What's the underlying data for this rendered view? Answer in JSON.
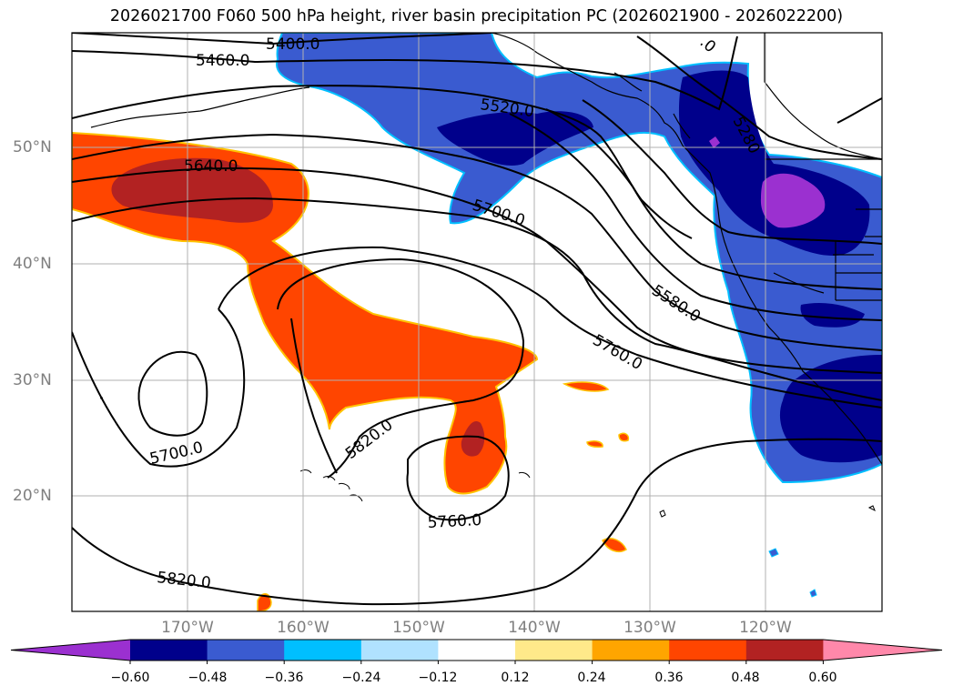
{
  "title": "2026021700 F060 500 hPa height, river basin precipitation PC (2026021900 - 2026022200)",
  "lat_labels": [
    "50°N",
    "40°N",
    "30°N",
    "20°N"
  ],
  "lon_labels": [
    "170°W",
    "160°W",
    "150°W",
    "140°W",
    "130°W",
    "120°W"
  ],
  "contour_labels": [
    "5400.0",
    "5460.0",
    "5520.0",
    "5640.0",
    "5700.0",
    "5580.0",
    "5760.0",
    "5820.0",
    "5700.0",
    "5760.0",
    "5820.0",
    "5280",
    ".0"
  ],
  "colorbar": {
    "ticks": [
      "−0.60",
      "−0.48",
      "−0.36",
      "−0.24",
      "−0.12",
      "0.12",
      "0.24",
      "0.36",
      "0.48",
      "0.60"
    ],
    "colors": [
      "#9b30d0",
      "#00008b",
      "#3a5bd0",
      "#00bfff",
      "#b0e2ff",
      "#ffffff",
      "#ffe98a",
      "#ffa500",
      "#ff4500",
      "#b22222",
      "#ff88aa"
    ]
  },
  "colors": {
    "positive_strong": "#b22222",
    "positive": "#ff4500",
    "positive_weak": "#ffa500",
    "negative": "#3a5bd0",
    "negative_strong": "#00008b",
    "negative_extreme": "#9b30d0",
    "grid": "#b0b0b0"
  }
}
